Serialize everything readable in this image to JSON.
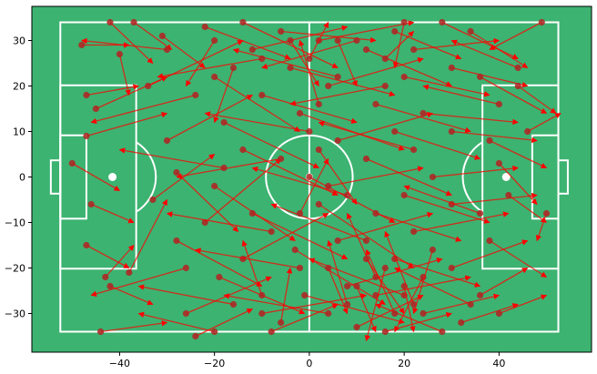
{
  "chart_data": {
    "type": "scatter",
    "subtype": "pass-map-on-football-pitch",
    "title": "",
    "xlabel": "",
    "ylabel": "",
    "xlim": [
      -58.5,
      59.5
    ],
    "ylim": [
      -38.5,
      37.5
    ],
    "x_ticks": [
      -40,
      -20,
      0,
      20,
      40
    ],
    "y_ticks": [
      -30,
      -20,
      -10,
      0,
      10,
      20,
      30
    ],
    "grid": false,
    "legend": "none",
    "colors": {
      "pitch": "#3cb371",
      "lines": "#ffffff",
      "arrows": "#ff0000",
      "start_points": "#b22222"
    },
    "pitch": {
      "x_extent": [
        -52.5,
        52.5
      ],
      "y_extent": [
        -34,
        34
      ],
      "center_circle_radius": 9.15,
      "penalty_area": {
        "depth": 36.5,
        "half_width": 20.15
      },
      "six_yard_box": {
        "depth": 47,
        "half_width": 9.16
      },
      "goal": {
        "depth": 2,
        "half_width": 3.66
      },
      "penalty_spots_x": [
        -41.5,
        41.5
      ],
      "penalty_arc_radius": 9.15
    },
    "passes": [
      {
        "x": -42,
        "y": 34,
        "end_x": -33,
        "end_y": 25
      },
      {
        "x": -37,
        "y": 34,
        "end_x": -29,
        "end_y": 28
      },
      {
        "x": -31,
        "y": 31,
        "end_x": -22,
        "end_y": 24
      },
      {
        "x": -48,
        "y": 29,
        "end_x": -38,
        "end_y": 29
      },
      {
        "x": -40,
        "y": 27,
        "end_x": -38,
        "end_y": 18
      },
      {
        "x": -47,
        "y": 18,
        "end_x": -36,
        "end_y": 20
      },
      {
        "x": -45,
        "y": 15,
        "end_x": -30,
        "end_y": 22
      },
      {
        "x": -47,
        "y": 9,
        "end_x": -30,
        "end_y": 14
      },
      {
        "x": -50,
        "y": 3,
        "end_x": -40,
        "end_y": -3
      },
      {
        "x": -46,
        "y": -6,
        "end_x": -37,
        "end_y": -10
      },
      {
        "x": -47,
        "y": -15,
        "end_x": -38,
        "end_y": -20
      },
      {
        "x": -43,
        "y": -22,
        "end_x": -37,
        "end_y": -15
      },
      {
        "x": -42,
        "y": -24,
        "end_x": -33,
        "end_y": -28
      },
      {
        "x": -38,
        "y": -21,
        "end_x": -30,
        "end_y": -5
      },
      {
        "x": -44,
        "y": -34,
        "end_x": -30,
        "end_y": -32
      },
      {
        "x": -34,
        "y": 20,
        "end_x": -14,
        "end_y": 30
      },
      {
        "x": -30,
        "y": 8,
        "end_x": -12,
        "end_y": 18
      },
      {
        "x": -28,
        "y": 1,
        "end_x": -15,
        "end_y": -12
      },
      {
        "x": -33,
        "y": -5,
        "end_x": -20,
        "end_y": 5
      },
      {
        "x": -28,
        "y": -14,
        "end_x": -10,
        "end_y": -24
      },
      {
        "x": -26,
        "y": -30,
        "end_x": -8,
        "end_y": -22
      },
      {
        "x": -24,
        "y": -35,
        "end_x": -12,
        "end_y": -29
      },
      {
        "x": -22,
        "y": 33,
        "end_x": -4,
        "end_y": 26
      },
      {
        "x": -20,
        "y": 22,
        "end_x": -2,
        "end_y": 10
      },
      {
        "x": -18,
        "y": 12,
        "end_x": 2,
        "end_y": 2
      },
      {
        "x": -20,
        "y": -2,
        "end_x": -3,
        "end_y": -14
      },
      {
        "x": -22,
        "y": -10,
        "end_x": -6,
        "end_y": 4
      },
      {
        "x": -19,
        "y": -22,
        "end_x": -1,
        "end_y": -30
      },
      {
        "x": -14,
        "y": 34,
        "end_x": 6,
        "end_y": 24
      },
      {
        "x": -12,
        "y": 28,
        "end_x": 8,
        "end_y": 33
      },
      {
        "x": -10,
        "y": 18,
        "end_x": 10,
        "end_y": 12
      },
      {
        "x": -14,
        "y": 6,
        "end_x": 6,
        "end_y": -4
      },
      {
        "x": -12,
        "y": -8,
        "end_x": 8,
        "end_y": -18
      },
      {
        "x": -14,
        "y": -18,
        "end_x": 4,
        "end_y": -8
      },
      {
        "x": -10,
        "y": -30,
        "end_x": 12,
        "end_y": -26
      },
      {
        "x": -8,
        "y": -34,
        "end_x": 6,
        "end_y": -28
      },
      {
        "x": -6,
        "y": 32,
        "end_x": 14,
        "end_y": 30
      },
      {
        "x": -4,
        "y": 24,
        "end_x": 18,
        "end_y": 18
      },
      {
        "x": -2,
        "y": 14,
        "end_x": 20,
        "end_y": 6
      },
      {
        "x": 0,
        "y": 0,
        "end_x": 18,
        "end_y": -10
      },
      {
        "x": 2,
        "y": -6,
        "end_x": 22,
        "end_y": -20
      },
      {
        "x": -3,
        "y": -16,
        "end_x": 16,
        "end_y": -28
      },
      {
        "x": -1,
        "y": -26,
        "end_x": 20,
        "end_y": -32
      },
      {
        "x": 2,
        "y": 30,
        "end_x": 22,
        "end_y": 34
      },
      {
        "x": 4,
        "y": 20,
        "end_x": 24,
        "end_y": 26
      },
      {
        "x": 6,
        "y": 8,
        "end_x": 26,
        "end_y": 14
      },
      {
        "x": 4,
        "y": -2,
        "end_x": 24,
        "end_y": 2
      },
      {
        "x": 6,
        "y": -14,
        "end_x": 26,
        "end_y": -8
      },
      {
        "x": 8,
        "y": -24,
        "end_x": 28,
        "end_y": -18
      },
      {
        "x": 10,
        "y": -33,
        "end_x": 24,
        "end_y": -26
      },
      {
        "x": 12,
        "y": 28,
        "end_x": 30,
        "end_y": 20
      },
      {
        "x": 14,
        "y": 16,
        "end_x": 34,
        "end_y": 10
      },
      {
        "x": 12,
        "y": 4,
        "end_x": 30,
        "end_y": -4
      },
      {
        "x": 14,
        "y": -8,
        "end_x": 32,
        "end_y": -14
      },
      {
        "x": 14,
        "y": -26,
        "end_x": 34,
        "end_y": -22
      },
      {
        "x": 18,
        "y": 32,
        "end_x": 32,
        "end_y": 26
      },
      {
        "x": 20,
        "y": 22,
        "end_x": 38,
        "end_y": 18
      },
      {
        "x": 18,
        "y": 10,
        "end_x": 36,
        "end_y": 4
      },
      {
        "x": 20,
        "y": -4,
        "end_x": 38,
        "end_y": -10
      },
      {
        "x": 18,
        "y": -18,
        "end_x": 36,
        "end_y": -24
      },
      {
        "x": 16,
        "y": -34,
        "end_x": 30,
        "end_y": -30
      },
      {
        "x": 22,
        "y": 28,
        "end_x": 40,
        "end_y": 30
      },
      {
        "x": 24,
        "y": 14,
        "end_x": 44,
        "end_y": 12
      },
      {
        "x": 26,
        "y": 0,
        "end_x": 44,
        "end_y": 2
      },
      {
        "x": 22,
        "y": -12,
        "end_x": 42,
        "end_y": -8
      },
      {
        "x": 24,
        "y": -30,
        "end_x": 40,
        "end_y": -26
      },
      {
        "x": 28,
        "y": 34,
        "end_x": 44,
        "end_y": 26
      },
      {
        "x": 30,
        "y": 24,
        "end_x": 46,
        "end_y": 20
      },
      {
        "x": 30,
        "y": 10,
        "end_x": 48,
        "end_y": 8
      },
      {
        "x": 30,
        "y": -6,
        "end_x": 48,
        "end_y": -4
      },
      {
        "x": 30,
        "y": -20,
        "end_x": 46,
        "end_y": -14
      },
      {
        "x": 32,
        "y": -32,
        "end_x": 44,
        "end_y": -28
      },
      {
        "x": 34,
        "y": 32,
        "end_x": 46,
        "end_y": 24
      },
      {
        "x": 36,
        "y": 22,
        "end_x": 50,
        "end_y": 14
      },
      {
        "x": 38,
        "y": 8,
        "end_x": 50,
        "end_y": 2
      },
      {
        "x": 40,
        "y": 3,
        "end_x": 48,
        "end_y": -6
      },
      {
        "x": 42,
        "y": -4,
        "end_x": 50,
        "end_y": -10
      },
      {
        "x": 38,
        "y": -14,
        "end_x": 50,
        "end_y": -22
      },
      {
        "x": 36,
        "y": -26,
        "end_x": 46,
        "end_y": -20
      },
      {
        "x": 40,
        "y": -30,
        "end_x": 50,
        "end_y": -26
      },
      {
        "x": 44,
        "y": 20,
        "end_x": 52,
        "end_y": 14
      },
      {
        "x": 46,
        "y": 10,
        "end_x": 53,
        "end_y": 14
      },
      {
        "x": 50,
        "y": -8,
        "end_x": 48,
        "end_y": -14
      },
      {
        "x": 49,
        "y": 34,
        "end_x": 38,
        "end_y": 28
      },
      {
        "x": 44,
        "y": 24,
        "end_x": 30,
        "end_y": 30
      },
      {
        "x": 40,
        "y": 16,
        "end_x": 24,
        "end_y": 20
      },
      {
        "x": 36,
        "y": -8,
        "end_x": 20,
        "end_y": -2
      },
      {
        "x": 34,
        "y": -28,
        "end_x": 18,
        "end_y": -20
      },
      {
        "x": 28,
        "y": -34,
        "end_x": 14,
        "end_y": -28
      },
      {
        "x": 22,
        "y": 6,
        "end_x": 2,
        "end_y": 12
      },
      {
        "x": 20,
        "y": -26,
        "end_x": 0,
        "end_y": -18
      },
      {
        "x": 16,
        "y": 20,
        "end_x": -4,
        "end_y": 16
      },
      {
        "x": 12,
        "y": -14,
        "end_x": -8,
        "end_y": -6
      },
      {
        "x": 10,
        "y": 30,
        "end_x": -10,
        "end_y": 24
      },
      {
        "x": 8,
        "y": -4,
        "end_x": -12,
        "end_y": 2
      },
      {
        "x": 6,
        "y": 22,
        "end_x": -16,
        "end_y": 28
      },
      {
        "x": 4,
        "y": -30,
        "end_x": -18,
        "end_y": -26
      },
      {
        "x": 0,
        "y": 10,
        "end_x": -22,
        "end_y": 14
      },
      {
        "x": -2,
        "y": -20,
        "end_x": -24,
        "end_y": -16
      },
      {
        "x": -6,
        "y": 4,
        "end_x": -28,
        "end_y": 0
      },
      {
        "x": -8,
        "y": -12,
        "end_x": -30,
        "end_y": -8
      },
      {
        "x": -10,
        "y": 26,
        "end_x": -32,
        "end_y": 22
      },
      {
        "x": -16,
        "y": -28,
        "end_x": -36,
        "end_y": -24
      },
      {
        "x": -18,
        "y": 2,
        "end_x": -40,
        "end_y": 6
      },
      {
        "x": -24,
        "y": 18,
        "end_x": -46,
        "end_y": 12
      },
      {
        "x": -26,
        "y": -20,
        "end_x": -46,
        "end_y": -26
      },
      {
        "x": -30,
        "y": 28,
        "end_x": -48,
        "end_y": 30
      },
      {
        "x": -20,
        "y": -34,
        "end_x": -36,
        "end_y": -30
      },
      {
        "x": 16,
        "y": -20,
        "end_x": 12,
        "end_y": -36
      },
      {
        "x": 20,
        "y": -24,
        "end_x": 22,
        "end_y": -34
      },
      {
        "x": 14,
        "y": -22,
        "end_x": 8,
        "end_y": -8
      },
      {
        "x": 18,
        "y": -30,
        "end_x": 12,
        "end_y": -16
      },
      {
        "x": 22,
        "y": -28,
        "end_x": 16,
        "end_y": -12
      },
      {
        "x": 10,
        "y": -24,
        "end_x": 14,
        "end_y": -34
      },
      {
        "x": 12,
        "y": -18,
        "end_x": 20,
        "end_y": -30
      },
      {
        "x": 24,
        "y": -22,
        "end_x": 18,
        "end_y": -34
      },
      {
        "x": 26,
        "y": -16,
        "end_x": 22,
        "end_y": -30
      },
      {
        "x": 8,
        "y": -28,
        "end_x": 4,
        "end_y": -14
      },
      {
        "x": 0,
        "y": 26,
        "end_x": 4,
        "end_y": 34
      },
      {
        "x": -4,
        "y": 30,
        "end_x": 2,
        "end_y": 20
      },
      {
        "x": 2,
        "y": 16,
        "end_x": -2,
        "end_y": 30
      },
      {
        "x": 6,
        "y": 30,
        "end_x": 10,
        "end_y": 20
      },
      {
        "x": 20,
        "y": 34,
        "end_x": 18,
        "end_y": 24
      },
      {
        "x": 16,
        "y": 26,
        "end_x": 22,
        "end_y": 32
      },
      {
        "x": -20,
        "y": 30,
        "end_x": -26,
        "end_y": 20
      },
      {
        "x": -16,
        "y": 24,
        "end_x": -20,
        "end_y": 12
      },
      {
        "x": -10,
        "y": -26,
        "end_x": -14,
        "end_y": -14
      },
      {
        "x": -6,
        "y": -32,
        "end_x": -4,
        "end_y": -20
      },
      {
        "x": 4,
        "y": -20,
        "end_x": 8,
        "end_y": -30
      },
      {
        "x": 2,
        "y": 6,
        "end_x": 10,
        "end_y": -6
      },
      {
        "x": -2,
        "y": -8,
        "end_x": 4,
        "end_y": 4
      }
    ]
  }
}
